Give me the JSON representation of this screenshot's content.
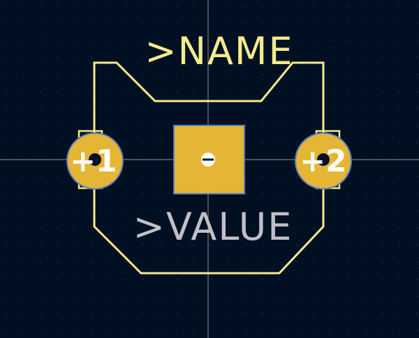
{
  "footprint": {
    "name_text": ">NAME",
    "value_text": ">VALUE",
    "pads": [
      {
        "id": "pad-1",
        "label": "+1",
        "shape": "circle"
      },
      {
        "id": "pad-2",
        "label": "+2",
        "shape": "circle"
      },
      {
        "id": "pad-center",
        "label": "",
        "shape": "square"
      }
    ]
  },
  "colors": {
    "background": "#001023",
    "grid_dot": "#1e3552",
    "crosshair": "#b8c2cc",
    "silkscreen": "#f2ec8c",
    "pad_fill": "#e5b535",
    "pad_outline": "#5a7fc0",
    "pad_label": "#ffffff",
    "value_text": "#c0c0c6",
    "drill_hole": "#ffffff"
  }
}
